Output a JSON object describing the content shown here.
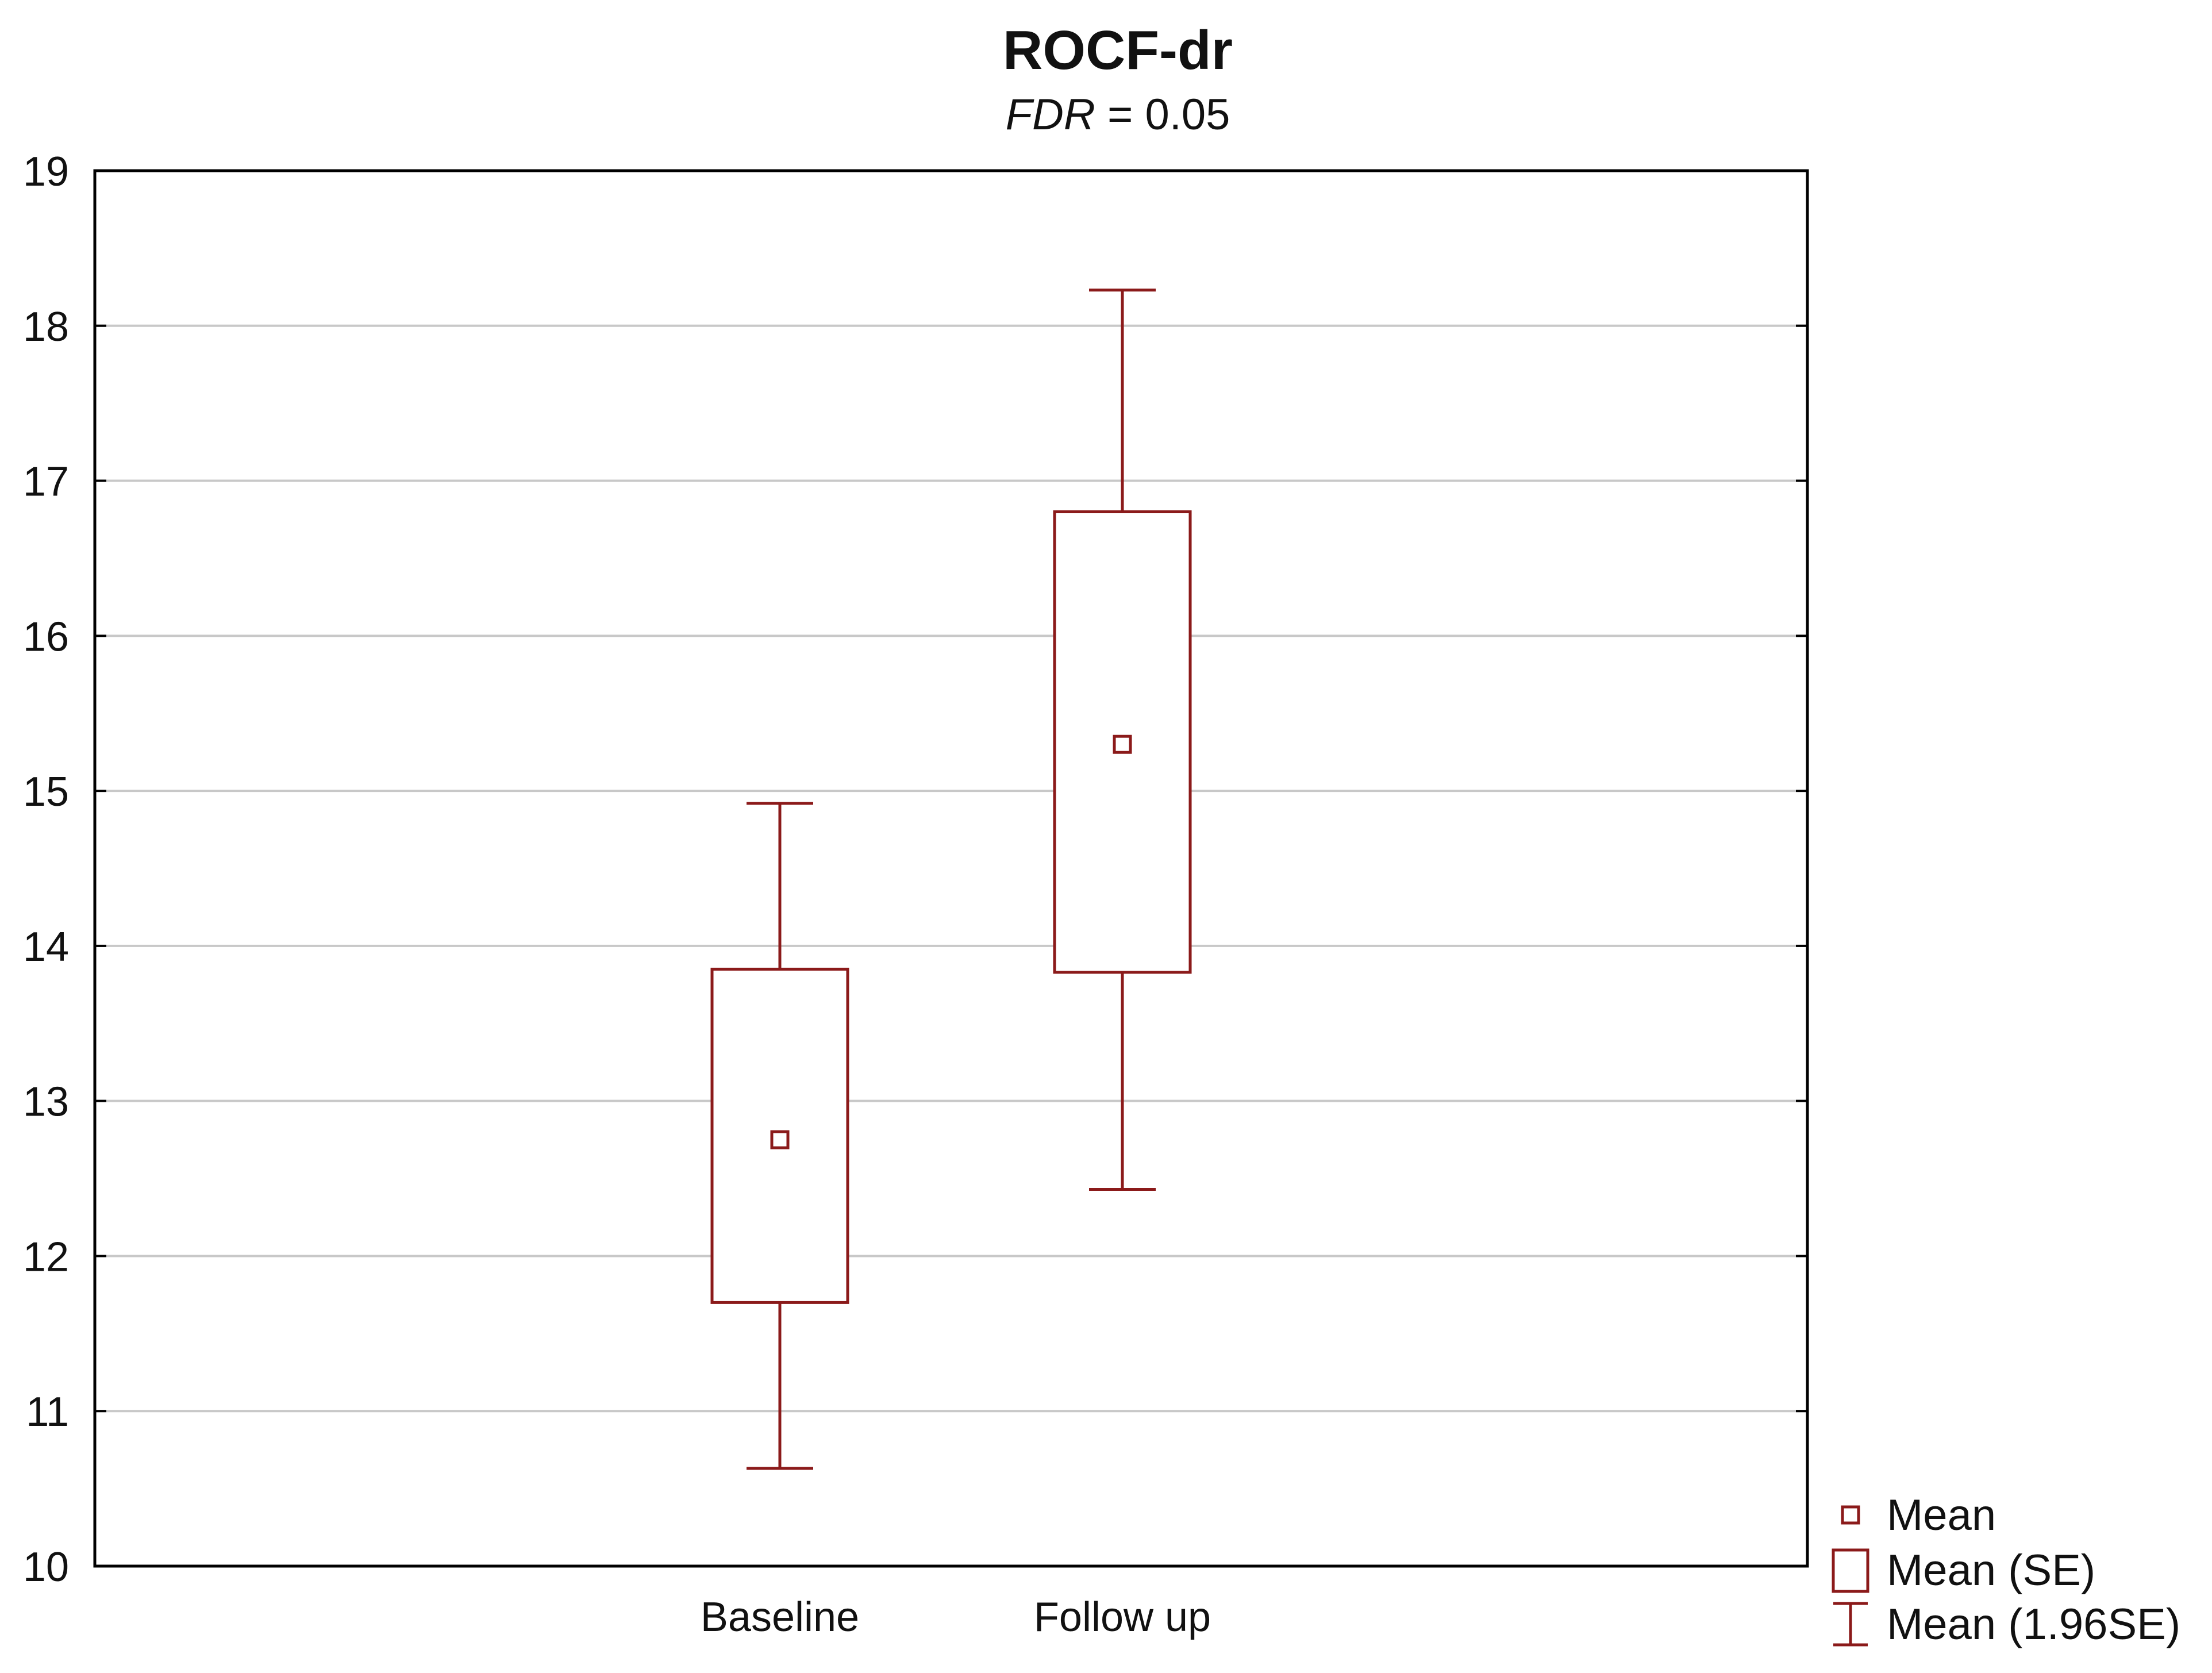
{
  "chart_data": {
    "type": "box",
    "title": "ROCF-dr",
    "subtitle": {
      "italic_part": "FDR",
      "rest": " = 0.05"
    },
    "xlabel": "",
    "ylabel": "",
    "categories": [
      "Baseline",
      "Follow up"
    ],
    "series": [
      {
        "category": "Baseline",
        "mean": 12.75,
        "se_low": 11.7,
        "se_high": 13.85,
        "ci_low": 10.63,
        "ci_high": 14.92
      },
      {
        "category": "Follow up",
        "mean": 15.3,
        "se_low": 13.83,
        "se_high": 16.8,
        "ci_low": 12.43,
        "ci_high": 18.23
      }
    ],
    "ylim": [
      10,
      19
    ],
    "yticks": [
      "10",
      "11",
      "12",
      "13",
      "14",
      "15",
      "16",
      "17",
      "18",
      "19"
    ],
    "grid": true,
    "legend_position": "bottom-right",
    "legend": [
      "Mean",
      "Mean (SE)",
      "Mean (1.96SE)"
    ],
    "color": "#8B1A1A"
  }
}
